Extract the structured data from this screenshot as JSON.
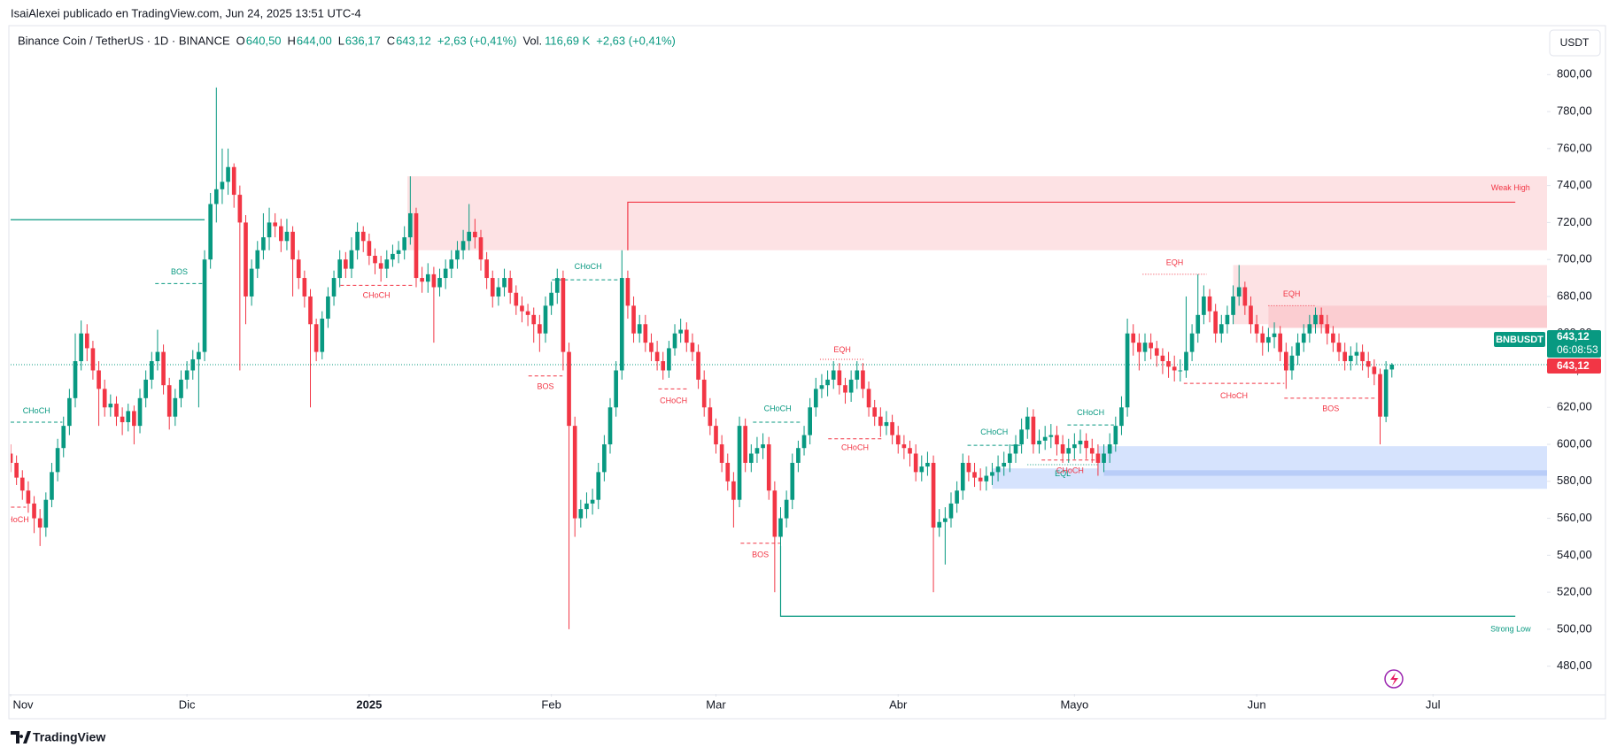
{
  "header": {
    "published": "IsaiAlexei publicado en TradingView.com, Jun 24, 2025 13:51 UTC-4",
    "legend": [
      {
        "text": "Binance Coin / TetherUS · 1D · BINANCE",
        "color": "#131722"
      },
      {
        "text": "O",
        "color": "#131722"
      },
      {
        "text": "640,50",
        "color": "#089981"
      },
      {
        "text": "H",
        "color": "#131722"
      },
      {
        "text": "644,00",
        "color": "#089981"
      },
      {
        "text": "L",
        "color": "#131722"
      },
      {
        "text": "636,17",
        "color": "#089981"
      },
      {
        "text": "C",
        "color": "#131722"
      },
      {
        "text": "643,12",
        "color": "#089981"
      },
      {
        "text": "+2,63 (+0,41%)",
        "color": "#089981"
      },
      {
        "text": "Vol.",
        "color": "#131722"
      },
      {
        "text": "116,69 K",
        "color": "#089981"
      },
      {
        "text": "+2,63 (+0,41%)",
        "color": "#089981"
      }
    ],
    "currency": "USDT"
  },
  "footer": {
    "brand": "TradingView"
  },
  "price_labels": {
    "symbol": "BNBUSDT",
    "price": "643,12",
    "countdown": "06:08:53",
    "price_alt": "643,12"
  },
  "chart_data": {
    "type": "candlestick",
    "up_color": "#089981",
    "down_color": "#f23645",
    "grid": false,
    "xlim": [
      0,
      261.4
    ],
    "ylim": [
      465,
      826
    ],
    "xticks": [
      {
        "value": 0,
        "label": "Nov"
      },
      {
        "value": 30,
        "label": "Dic"
      },
      {
        "value": 61,
        "label": "2025"
      },
      {
        "value": 92,
        "label": "Feb"
      },
      {
        "value": 120,
        "label": "Mar"
      },
      {
        "value": 151,
        "label": "Abr"
      },
      {
        "value": 181,
        "label": "Mayo"
      },
      {
        "value": 212,
        "label": "Jun"
      },
      {
        "value": 242,
        "label": "Jul"
      }
    ],
    "yticks": [
      {
        "value": 480,
        "label": "480,00"
      },
      {
        "value": 500,
        "label": "500,00"
      },
      {
        "value": 520,
        "label": "520,00"
      },
      {
        "value": 540,
        "label": "540,00"
      },
      {
        "value": 560,
        "label": "560,00"
      },
      {
        "value": 580,
        "label": "580,00"
      },
      {
        "value": 600,
        "label": "600,00"
      },
      {
        "value": 620,
        "label": "620,00"
      },
      {
        "value": 640,
        "label": "640,00"
      },
      {
        "value": 660,
        "label": "660,00"
      },
      {
        "value": 680,
        "label": "680,00"
      },
      {
        "value": 700,
        "label": "700,00"
      },
      {
        "value": 720,
        "label": "720,00"
      },
      {
        "value": 740,
        "label": "740,00"
      },
      {
        "value": 760,
        "label": "760,00"
      },
      {
        "value": 780,
        "label": "780,00"
      },
      {
        "value": 800,
        "label": "800,00"
      }
    ],
    "open": [
      595,
      590,
      582,
      575,
      568,
      560,
      555,
      570,
      585,
      598,
      610,
      625,
      645,
      660,
      652,
      640,
      630,
      620,
      622,
      615,
      612,
      618,
      610,
      625,
      635,
      645,
      650,
      632,
      615,
      625,
      635,
      640,
      646,
      650,
      700,
      730,
      738,
      742,
      750,
      735,
      720,
      680,
      695,
      705,
      712,
      720,
      718,
      710,
      715,
      700,
      690,
      680,
      665,
      650,
      668,
      680,
      690,
      700,
      695,
      705,
      715,
      710,
      702,
      698,
      695,
      700,
      703,
      705,
      712,
      725,
      690,
      688,
      692,
      685,
      690,
      695,
      700,
      705,
      710,
      715,
      712,
      700,
      690,
      680,
      685,
      690,
      682,
      675,
      672,
      670,
      665,
      660,
      675,
      682,
      690,
      650,
      610,
      560,
      565,
      568,
      570,
      585,
      600,
      620,
      640,
      690,
      675,
      660,
      665,
      655,
      650,
      645,
      640,
      652,
      660,
      662,
      655,
      650,
      635,
      620,
      610,
      600,
      590,
      580,
      570,
      610,
      590,
      595,
      598,
      600,
      575,
      550,
      560,
      570,
      590,
      598,
      605,
      620,
      630,
      632,
      635,
      640,
      632,
      628,
      635,
      640,
      630,
      620,
      615,
      610,
      612,
      605,
      600,
      598,
      595,
      585,
      588,
      590,
      555,
      558,
      560,
      568,
      575,
      590,
      585,
      582,
      580,
      583,
      585,
      588,
      590,
      595,
      600,
      608,
      615,
      600,
      602,
      604,
      605,
      600,
      595,
      598,
      600,
      602,
      598,
      595,
      590,
      595,
      600,
      610,
      620,
      660,
      655,
      650,
      655,
      652,
      648,
      645,
      642,
      640,
      640,
      650,
      660,
      670,
      680,
      672,
      660,
      665,
      670,
      680,
      685,
      675,
      665,
      660,
      655,
      658,
      660,
      650,
      640,
      648,
      655,
      660,
      665,
      670,
      665,
      660,
      655,
      650,
      645,
      648,
      650,
      645,
      642,
      638,
      615,
      640.5
    ],
    "high": [
      600,
      594,
      586,
      580,
      572,
      565,
      574,
      590,
      603,
      615,
      630,
      660,
      667,
      665,
      656,
      645,
      635,
      627,
      626,
      620,
      622,
      621,
      630,
      640,
      650,
      662,
      654,
      636,
      630,
      640,
      645,
      651,
      655,
      705,
      736,
      793,
      760,
      760,
      752,
      740,
      724,
      700,
      710,
      725,
      728,
      725,
      722,
      722,
      718,
      705,
      694,
      684,
      668,
      672,
      685,
      694,
      705,
      704,
      712,
      720,
      718,
      714,
      706,
      702,
      705,
      708,
      710,
      718,
      745,
      728,
      696,
      698,
      696,
      695,
      700,
      705,
      710,
      716,
      730,
      722,
      716,
      704,
      694,
      690,
      695,
      694,
      686,
      680,
      676,
      674,
      670,
      680,
      688,
      695,
      694,
      655,
      615,
      570,
      574,
      576,
      590,
      605,
      625,
      645,
      705,
      694,
      680,
      670,
      670,
      660,
      656,
      650,
      656,
      665,
      668,
      666,
      660,
      654,
      640,
      625,
      614,
      605,
      595,
      585,
      615,
      614,
      600,
      604,
      606,
      604,
      580,
      566,
      575,
      595,
      602,
      610,
      625,
      636,
      638,
      640,
      645,
      644,
      636,
      640,
      645,
      644,
      634,
      624,
      620,
      618,
      616,
      610,
      605,
      602,
      600,
      594,
      596,
      594,
      565,
      566,
      574,
      580,
      595,
      594,
      590,
      587,
      588,
      590,
      594,
      596,
      600,
      605,
      614,
      620,
      619,
      608,
      610,
      611,
      610,
      605,
      603,
      606,
      608,
      606,
      603,
      600,
      600,
      606,
      615,
      626,
      668,
      665,
      660,
      660,
      660,
      656,
      652,
      650,
      648,
      646,
      680,
      665,
      692,
      686,
      684,
      676,
      670,
      675,
      686,
      697,
      688,
      680,
      670,
      664,
      663,
      666,
      664,
      655,
      653,
      660,
      665,
      670,
      674,
      674,
      670,
      664,
      660,
      655,
      653,
      655,
      654,
      650,
      646,
      641,
      645,
      644
    ],
    "low": [
      585,
      578,
      570,
      563,
      552,
      545,
      550,
      566,
      580,
      593,
      605,
      620,
      640,
      645,
      635,
      610,
      615,
      615,
      610,
      605,
      607,
      600,
      606,
      620,
      630,
      640,
      627,
      608,
      610,
      620,
      630,
      635,
      620,
      645,
      695,
      720,
      730,
      735,
      728,
      640,
      665,
      675,
      690,
      700,
      705,
      712,
      704,
      705,
      680,
      684,
      674,
      620,
      645,
      646,
      663,
      675,
      685,
      690,
      690,
      700,
      704,
      697,
      692,
      688,
      690,
      696,
      698,
      700,
      708,
      685,
      682,
      682,
      655,
      680,
      684,
      690,
      695,
      700,
      705,
      706,
      694,
      684,
      674,
      675,
      680,
      676,
      670,
      666,
      664,
      655,
      650,
      655,
      670,
      676,
      640,
      500,
      550,
      555,
      560,
      562,
      565,
      580,
      595,
      615,
      635,
      668,
      655,
      655,
      650,
      645,
      640,
      635,
      636,
      648,
      655,
      650,
      645,
      630,
      615,
      605,
      595,
      585,
      575,
      555,
      566,
      585,
      585,
      590,
      592,
      570,
      520,
      540,
      555,
      565,
      585,
      594,
      600,
      615,
      625,
      626,
      630,
      627,
      622,
      623,
      630,
      625,
      615,
      610,
      604,
      605,
      600,
      595,
      592,
      588,
      580,
      580,
      583,
      520,
      550,
      535,
      555,
      563,
      570,
      580,
      577,
      575,
      575,
      578,
      580,
      583,
      585,
      590,
      595,
      603,
      595,
      595,
      597,
      598,
      594,
      590,
      590,
      592,
      595,
      592,
      590,
      583,
      585,
      590,
      596,
      605,
      615,
      648,
      640,
      645,
      646,
      642,
      638,
      636,
      634,
      634,
      636,
      645,
      655,
      665,
      666,
      655,
      655,
      660,
      665,
      675,
      670,
      660,
      655,
      648,
      650,
      652,
      645,
      630,
      635,
      643,
      650,
      655,
      660,
      660,
      654,
      650,
      645,
      640,
      640,
      643,
      640,
      636,
      632,
      600,
      612,
      636.17
    ],
    "close": [
      590,
      582,
      575,
      568,
      560,
      555,
      570,
      585,
      598,
      610,
      625,
      645,
      660,
      652,
      640,
      630,
      620,
      622,
      615,
      612,
      618,
      610,
      625,
      635,
      645,
      650,
      632,
      615,
      625,
      635,
      640,
      646,
      650,
      700,
      730,
      738,
      742,
      750,
      735,
      720,
      680,
      695,
      705,
      712,
      720,
      718,
      710,
      715,
      700,
      690,
      680,
      665,
      650,
      668,
      680,
      690,
      700,
      695,
      705,
      715,
      710,
      702,
      698,
      695,
      700,
      703,
      705,
      712,
      725,
      690,
      688,
      692,
      685,
      690,
      695,
      700,
      705,
      710,
      715,
      712,
      700,
      690,
      680,
      685,
      690,
      682,
      675,
      672,
      670,
      665,
      660,
      675,
      682,
      690,
      650,
      610,
      560,
      565,
      568,
      570,
      585,
      600,
      620,
      640,
      690,
      675,
      660,
      665,
      655,
      650,
      645,
      640,
      652,
      660,
      662,
      655,
      650,
      635,
      620,
      610,
      600,
      590,
      580,
      570,
      610,
      590,
      595,
      598,
      600,
      575,
      550,
      560,
      570,
      590,
      598,
      605,
      620,
      630,
      632,
      635,
      640,
      632,
      628,
      635,
      640,
      630,
      620,
      615,
      610,
      612,
      605,
      600,
      598,
      595,
      585,
      588,
      590,
      555,
      558,
      560,
      568,
      575,
      590,
      585,
      582,
      580,
      583,
      585,
      588,
      590,
      595,
      600,
      608,
      615,
      600,
      602,
      604,
      605,
      600,
      595,
      598,
      600,
      602,
      598,
      595,
      590,
      595,
      600,
      610,
      620,
      660,
      655,
      650,
      655,
      652,
      648,
      645,
      642,
      640,
      640,
      650,
      660,
      670,
      680,
      672,
      660,
      665,
      670,
      680,
      685,
      675,
      665,
      660,
      655,
      658,
      660,
      650,
      640,
      648,
      655,
      660,
      665,
      670,
      665,
      660,
      655,
      650,
      645,
      648,
      650,
      645,
      642,
      638,
      615,
      640.5,
      643.12
    ],
    "zones": [
      {
        "x": [
          67.5,
          261.4
        ],
        "y": [
          705,
          745
        ],
        "color": "#fde2e4"
      },
      {
        "x": [
          208,
          261.4
        ],
        "y": [
          665,
          697
        ],
        "color": "#fde2e4"
      },
      {
        "x": [
          214,
          261.4
        ],
        "y": [
          663,
          675
        ],
        "color": "#fbcdd1"
      },
      {
        "x": [
          167,
          261.4
        ],
        "y": [
          576,
          587
        ],
        "color": "#d6e3fd"
      },
      {
        "x": [
          185,
          261.4
        ],
        "y": [
          576,
          599
        ],
        "color": "#d6e3fd"
      },
      {
        "x": [
          186,
          261.4
        ],
        "y": [
          583,
          586
        ],
        "color": "#b9cdf8"
      }
    ],
    "lines": [
      {
        "points": [
          [
            -1,
            721.5
          ],
          [
            33,
            721.5
          ]
        ],
        "color": "#089981"
      },
      {
        "points": [
          [
            105,
            705
          ],
          [
            105,
            731
          ],
          [
            256,
            731
          ]
        ],
        "color": "#f23645"
      },
      {
        "points": [
          [
            131,
            545
          ],
          [
            131,
            507
          ],
          [
            256,
            507
          ]
        ],
        "color": "#089981"
      }
    ],
    "line_labels": [
      {
        "text": "Weak High",
        "x": 255.2,
        "y": 738.5,
        "color": "#f23645"
      },
      {
        "text": "Strong Low",
        "x": 255.2,
        "y": 500,
        "color": "#089981"
      }
    ],
    "structures": [
      {
        "label": "CHoCH",
        "x": [
          0,
          8.8
        ],
        "y": 612,
        "label_y": 618,
        "color": "#089981",
        "style": "dashed"
      },
      {
        "label": "BOS",
        "x": [
          24.6,
          32.8
        ],
        "y": 687,
        "label_y": 693,
        "color": "#089981",
        "style": "dashed"
      },
      {
        "label": "CHoCH",
        "x": [
          56.1,
          68.4
        ],
        "y": 686,
        "label_y": 680.5,
        "color": "#f23645",
        "style": "dashed"
      },
      {
        "label": "CHoCH",
        "x": [
          92.1,
          104.4
        ],
        "y": 689,
        "label_y": 696,
        "color": "#089981",
        "style": "dashed"
      },
      {
        "label": "BOS",
        "x": [
          88.1,
          93.9
        ],
        "y": 637,
        "label_y": 631,
        "color": "#f23645",
        "style": "dashed"
      },
      {
        "label": "CHoCH",
        "x": [
          110.2,
          115.4
        ],
        "y": 630,
        "label_y": 623.5,
        "color": "#f23645",
        "style": "dashed"
      },
      {
        "label": "CHoCH",
        "x": [
          126.3,
          134.7
        ],
        "y": 612,
        "label_y": 619,
        "color": "#089981",
        "style": "dashed"
      },
      {
        "label": "BOS",
        "x": [
          124.2,
          130.9
        ],
        "y": 546.5,
        "label_y": 540,
        "color": "#f23645",
        "style": "dashed"
      },
      {
        "label": "EQH",
        "x": [
          137.7,
          145.3
        ],
        "y": 646,
        "label_y": 651,
        "color": "#f23645",
        "style": "dotted"
      },
      {
        "label": "CHoCH",
        "x": [
          139.1,
          148.2
        ],
        "y": 603,
        "label_y": 598,
        "color": "#f23645",
        "style": "dashed"
      },
      {
        "label": "CHoCH",
        "x": [
          162.8,
          171.9
        ],
        "y": 599.5,
        "label_y": 606.5,
        "color": "#089981",
        "style": "dashed"
      },
      {
        "label": "EQL",
        "x": [
          173,
          185
        ],
        "y": 589,
        "label_y": 584,
        "color": "#089981",
        "style": "dotted"
      },
      {
        "label": "CHoCH",
        "x": [
          175.4,
          185.1
        ],
        "y": 591.5,
        "label_y": 585.5,
        "color": "#f23645",
        "style": "dashed"
      },
      {
        "label": "CHoCH",
        "x": [
          179.8,
          187.7
        ],
        "y": 610.5,
        "label_y": 617,
        "color": "#089981",
        "style": "dashed"
      },
      {
        "label": "EQH",
        "x": [
          192.6,
          203.5
        ],
        "y": 692,
        "label_y": 698,
        "color": "#f23645",
        "style": "dotted"
      },
      {
        "label": "CHoCH",
        "x": [
          199.6,
          216.7
        ],
        "y": 633,
        "label_y": 626,
        "color": "#f23645",
        "style": "dashed"
      },
      {
        "label": "EQH",
        "x": [
          214,
          221.9
        ],
        "y": 675,
        "label_y": 681,
        "color": "#f23645",
        "style": "dotted"
      },
      {
        "label": "BOS",
        "x": [
          216.7,
          232.5
        ],
        "y": 625,
        "label_y": 619,
        "color": "#f23645",
        "style": "dashed"
      },
      {
        "label": "CHoCH",
        "x": [
          -1,
          2.6
        ],
        "y": 566,
        "label_y": 559,
        "color": "#f23645",
        "style": "dashed"
      }
    ]
  }
}
